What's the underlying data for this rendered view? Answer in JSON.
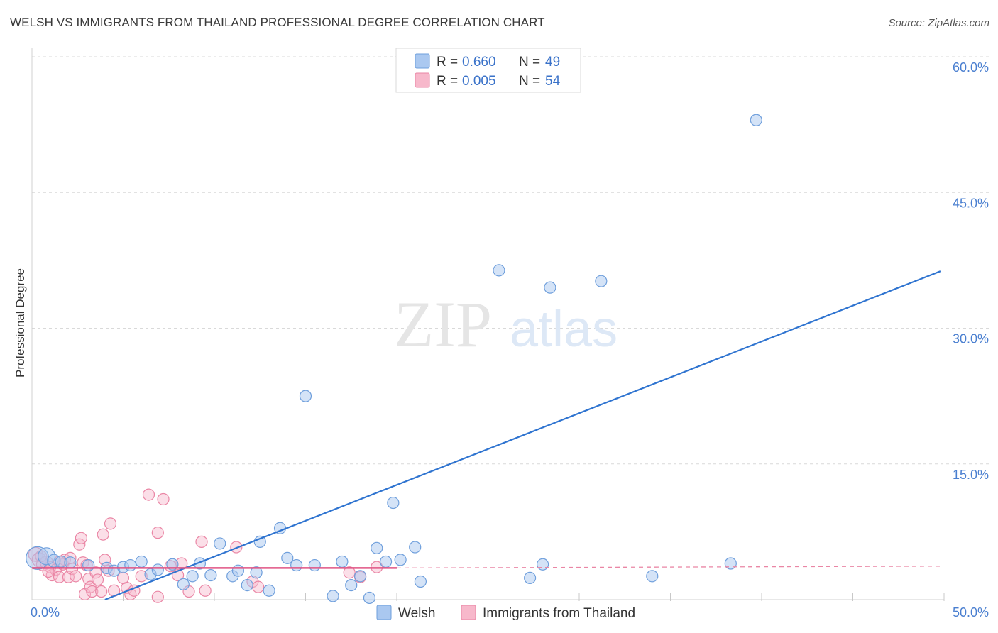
{
  "title": "WELSH VS IMMIGRANTS FROM THAILAND PROFESSIONAL DEGREE CORRELATION CHART",
  "source": "Source: ZipAtlas.com",
  "watermark": {
    "zip": "ZIP",
    "atlas": "atlas"
  },
  "colors": {
    "welsh_fill": "#aac8f0",
    "welsh_stroke": "#6f9fdc",
    "welsh_line": "#2f74d0",
    "thai_fill": "#f7b8cb",
    "thai_stroke": "#ea86a5",
    "thai_line": "#e05585",
    "grid": "#d9d9d9",
    "tick": "#4a7fd0"
  },
  "legend": {
    "rows": [
      {
        "r_label": "R =",
        "r_value": "0.660",
        "n_label": "N =",
        "n_value": "49"
      },
      {
        "r_label": "R =",
        "r_value": "0.005",
        "n_label": "N =",
        "n_value": "54"
      }
    ]
  },
  "chart_data": {
    "type": "scatter",
    "title": "WELSH VS IMMIGRANTS FROM THAILAND PROFESSIONAL DEGREE CORRELATION CHART",
    "xlabel": "",
    "ylabel": "Professional Degree",
    "xlim": [
      0,
      50
    ],
    "ylim": [
      0,
      60
    ],
    "x_tick_labels": [
      "0.0%",
      "50.0%"
    ],
    "y_ticks": [
      15,
      30,
      45,
      60
    ],
    "y_tick_labels": [
      "15.0%",
      "30.0%",
      "45.0%",
      "60.0%"
    ],
    "grid": true,
    "legend_position": "top-center",
    "series": [
      {
        "name": "Welsh",
        "R": 0.66,
        "N": 49,
        "trend": {
          "x": [
            4.0,
            49.8
          ],
          "y": [
            0.0,
            36.3
          ]
        },
        "points": [
          [
            0.3,
            4.6,
            16
          ],
          [
            0.8,
            4.8,
            12
          ],
          [
            1.2,
            4.3,
            9
          ],
          [
            1.6,
            4.2,
            8
          ],
          [
            2.1,
            4.1,
            8
          ],
          [
            3.1,
            3.8,
            8
          ],
          [
            4.1,
            3.5,
            8
          ],
          [
            4.5,
            3.2,
            8
          ],
          [
            5.0,
            3.6,
            8
          ],
          [
            5.4,
            3.8,
            8
          ],
          [
            6.0,
            4.2,
            8
          ],
          [
            6.5,
            2.8,
            8
          ],
          [
            6.9,
            3.3,
            8
          ],
          [
            7.7,
            3.9,
            8
          ],
          [
            8.3,
            1.7,
            8
          ],
          [
            8.8,
            2.6,
            8
          ],
          [
            9.2,
            4.0,
            8
          ],
          [
            9.8,
            2.7,
            8
          ],
          [
            10.3,
            6.2,
            8
          ],
          [
            11.0,
            2.6,
            8
          ],
          [
            11.3,
            3.2,
            8
          ],
          [
            11.8,
            1.6,
            8
          ],
          [
            12.3,
            3.0,
            8
          ],
          [
            12.5,
            6.4,
            8
          ],
          [
            13.0,
            1.0,
            8
          ],
          [
            13.6,
            7.9,
            8
          ],
          [
            14.0,
            4.6,
            8
          ],
          [
            14.5,
            3.8,
            8
          ],
          [
            15.5,
            3.8,
            8
          ],
          [
            15.0,
            22.5,
            8
          ],
          [
            16.5,
            0.4,
            8
          ],
          [
            17.0,
            4.2,
            8
          ],
          [
            17.5,
            1.6,
            8
          ],
          [
            18.0,
            2.6,
            8
          ],
          [
            18.5,
            0.2,
            8
          ],
          [
            18.9,
            5.7,
            8
          ],
          [
            19.4,
            4.2,
            8
          ],
          [
            20.2,
            4.4,
            8
          ],
          [
            19.8,
            10.7,
            8
          ],
          [
            21.0,
            5.8,
            8
          ],
          [
            21.3,
            2.0,
            8
          ],
          [
            25.6,
            36.4,
            8
          ],
          [
            27.3,
            2.4,
            8
          ],
          [
            28.4,
            34.5,
            8
          ],
          [
            31.2,
            35.2,
            8
          ],
          [
            38.3,
            4.0,
            8
          ],
          [
            39.7,
            53.0,
            8
          ],
          [
            34.0,
            2.6,
            8
          ],
          [
            28.0,
            3.9,
            8
          ]
        ]
      },
      {
        "name": "Immigrants from Thailand",
        "R": 0.005,
        "N": 54,
        "trend": {
          "x": [
            0.0,
            20.0
          ],
          "y": [
            3.5,
            3.5
          ]
        },
        "trend_ext": {
          "x": [
            20.0,
            49.8
          ],
          "y": [
            3.5,
            3.7
          ]
        },
        "points": [
          [
            0.2,
            5.0,
            10
          ],
          [
            0.4,
            4.4,
            10
          ],
          [
            0.6,
            3.9,
            9
          ],
          [
            0.8,
            4.1,
            9
          ],
          [
            1.0,
            3.6,
            8
          ],
          [
            1.1,
            2.7,
            8
          ],
          [
            1.3,
            3.3,
            8
          ],
          [
            1.5,
            2.5,
            8
          ],
          [
            1.7,
            3.9,
            8
          ],
          [
            1.8,
            4.4,
            8
          ],
          [
            2.0,
            2.5,
            8
          ],
          [
            2.2,
            3.4,
            8
          ],
          [
            2.4,
            2.6,
            8
          ],
          [
            2.6,
            6.1,
            8
          ],
          [
            2.7,
            6.8,
            8
          ],
          [
            2.8,
            4.1,
            8
          ],
          [
            2.9,
            0.6,
            8
          ],
          [
            3.1,
            2.3,
            8
          ],
          [
            3.2,
            1.4,
            8
          ],
          [
            3.3,
            0.9,
            8
          ],
          [
            3.5,
            3.0,
            8
          ],
          [
            3.6,
            2.2,
            8
          ],
          [
            3.8,
            0.9,
            8
          ],
          [
            3.9,
            7.2,
            8
          ],
          [
            4.0,
            4.4,
            8
          ],
          [
            4.2,
            3.2,
            8
          ],
          [
            4.3,
            8.4,
            8
          ],
          [
            4.5,
            1.0,
            8
          ],
          [
            5.2,
            1.3,
            8
          ],
          [
            5.4,
            0.6,
            8
          ],
          [
            5.6,
            1.0,
            8
          ],
          [
            6.0,
            2.6,
            8
          ],
          [
            6.4,
            11.6,
            8
          ],
          [
            6.9,
            7.4,
            8
          ],
          [
            7.2,
            11.1,
            8
          ],
          [
            7.6,
            3.7,
            8
          ],
          [
            8.0,
            2.7,
            8
          ],
          [
            8.6,
            0.9,
            8
          ],
          [
            9.3,
            6.4,
            8
          ],
          [
            9.5,
            1.0,
            8
          ],
          [
            11.2,
            5.8,
            8
          ],
          [
            12.1,
            2.0,
            8
          ],
          [
            12.4,
            1.4,
            8
          ],
          [
            17.4,
            3.0,
            8
          ],
          [
            18.0,
            2.5,
            8
          ],
          [
            18.9,
            3.6,
            8
          ],
          [
            6.9,
            0.3,
            8
          ],
          [
            1.5,
            4.2,
            8
          ],
          [
            0.5,
            4.8,
            8
          ],
          [
            2.1,
            4.6,
            8
          ],
          [
            3.0,
            3.8,
            8
          ],
          [
            5.0,
            2.4,
            8
          ],
          [
            8.2,
            4.0,
            8
          ],
          [
            0.9,
            3.1,
            8
          ]
        ]
      }
    ]
  }
}
